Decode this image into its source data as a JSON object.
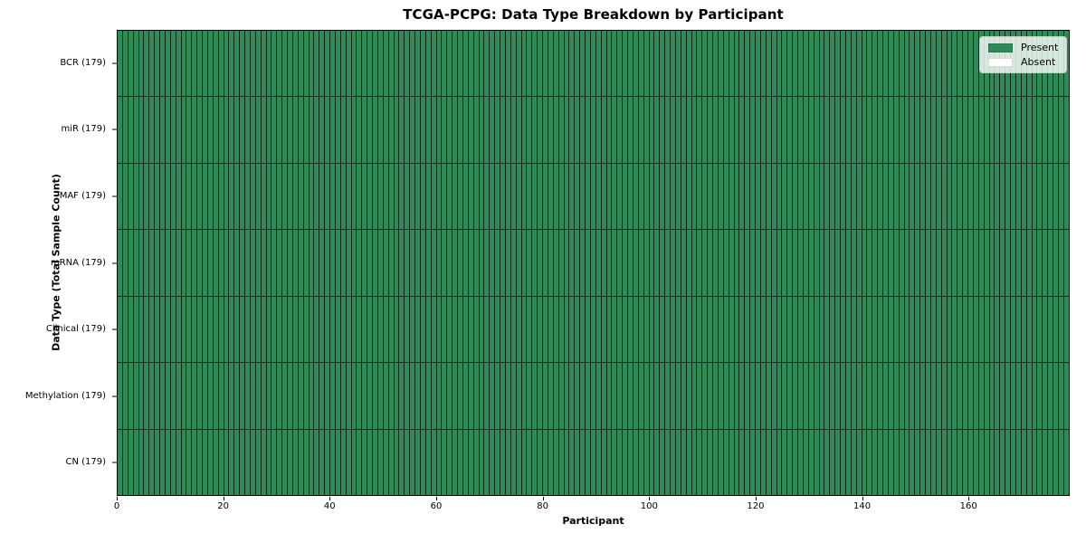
{
  "title": "TCGA-PCPG: Data Type Breakdown by Participant",
  "axes": {
    "x_label": "Participant",
    "y_label": "Data Type (Total Sample Count)",
    "x_ticks": [
      0,
      20,
      40,
      60,
      80,
      100,
      120,
      140,
      160
    ],
    "x_range": [
      0,
      179
    ]
  },
  "legend": {
    "items": [
      {
        "label": "Present",
        "color": "#2e8b57"
      },
      {
        "label": "Absent",
        "color": "#ffffff"
      }
    ]
  },
  "chart_data": {
    "type": "heatmap",
    "title": "TCGA-PCPG: Data Type Breakdown by Participant",
    "xlabel": "Participant",
    "ylabel": "Data Type (Total Sample Count)",
    "n_participants": 179,
    "x_ticks": [
      0,
      20,
      40,
      60,
      80,
      100,
      120,
      140,
      160
    ],
    "rows": [
      {
        "label": "BCR (179)",
        "data_type": "BCR",
        "total_samples": 179,
        "present_count": 179,
        "absent_count": 0
      },
      {
        "label": "miR (179)",
        "data_type": "miR",
        "total_samples": 179,
        "present_count": 179,
        "absent_count": 0
      },
      {
        "label": "MAF (179)",
        "data_type": "MAF",
        "total_samples": 179,
        "present_count": 179,
        "absent_count": 0
      },
      {
        "label": "mRNA (179)",
        "data_type": "mRNA",
        "total_samples": 179,
        "present_count": 179,
        "absent_count": 0
      },
      {
        "label": "Clinical (179)",
        "data_type": "Clinical",
        "total_samples": 179,
        "present_count": 179,
        "absent_count": 0
      },
      {
        "label": "Methylation (179)",
        "data_type": "Methylation",
        "total_samples": 179,
        "present_count": 179,
        "absent_count": 0
      },
      {
        "label": "CN (179)",
        "data_type": "CN",
        "total_samples": 179,
        "present_count": 179,
        "absent_count": 0
      }
    ],
    "all_cells_present": true,
    "cell_values": {
      "present": 1,
      "absent": 0
    },
    "colors": {
      "present": "#2e8b57",
      "absent": "#ffffff",
      "cell_border": "rgba(0,0,0,0.72)",
      "row_separator": "rgba(0,0,0,0.85)"
    },
    "legend_entries": [
      "Present",
      "Absent"
    ],
    "legend_position": "upper right",
    "grid": "per-cell borders"
  }
}
